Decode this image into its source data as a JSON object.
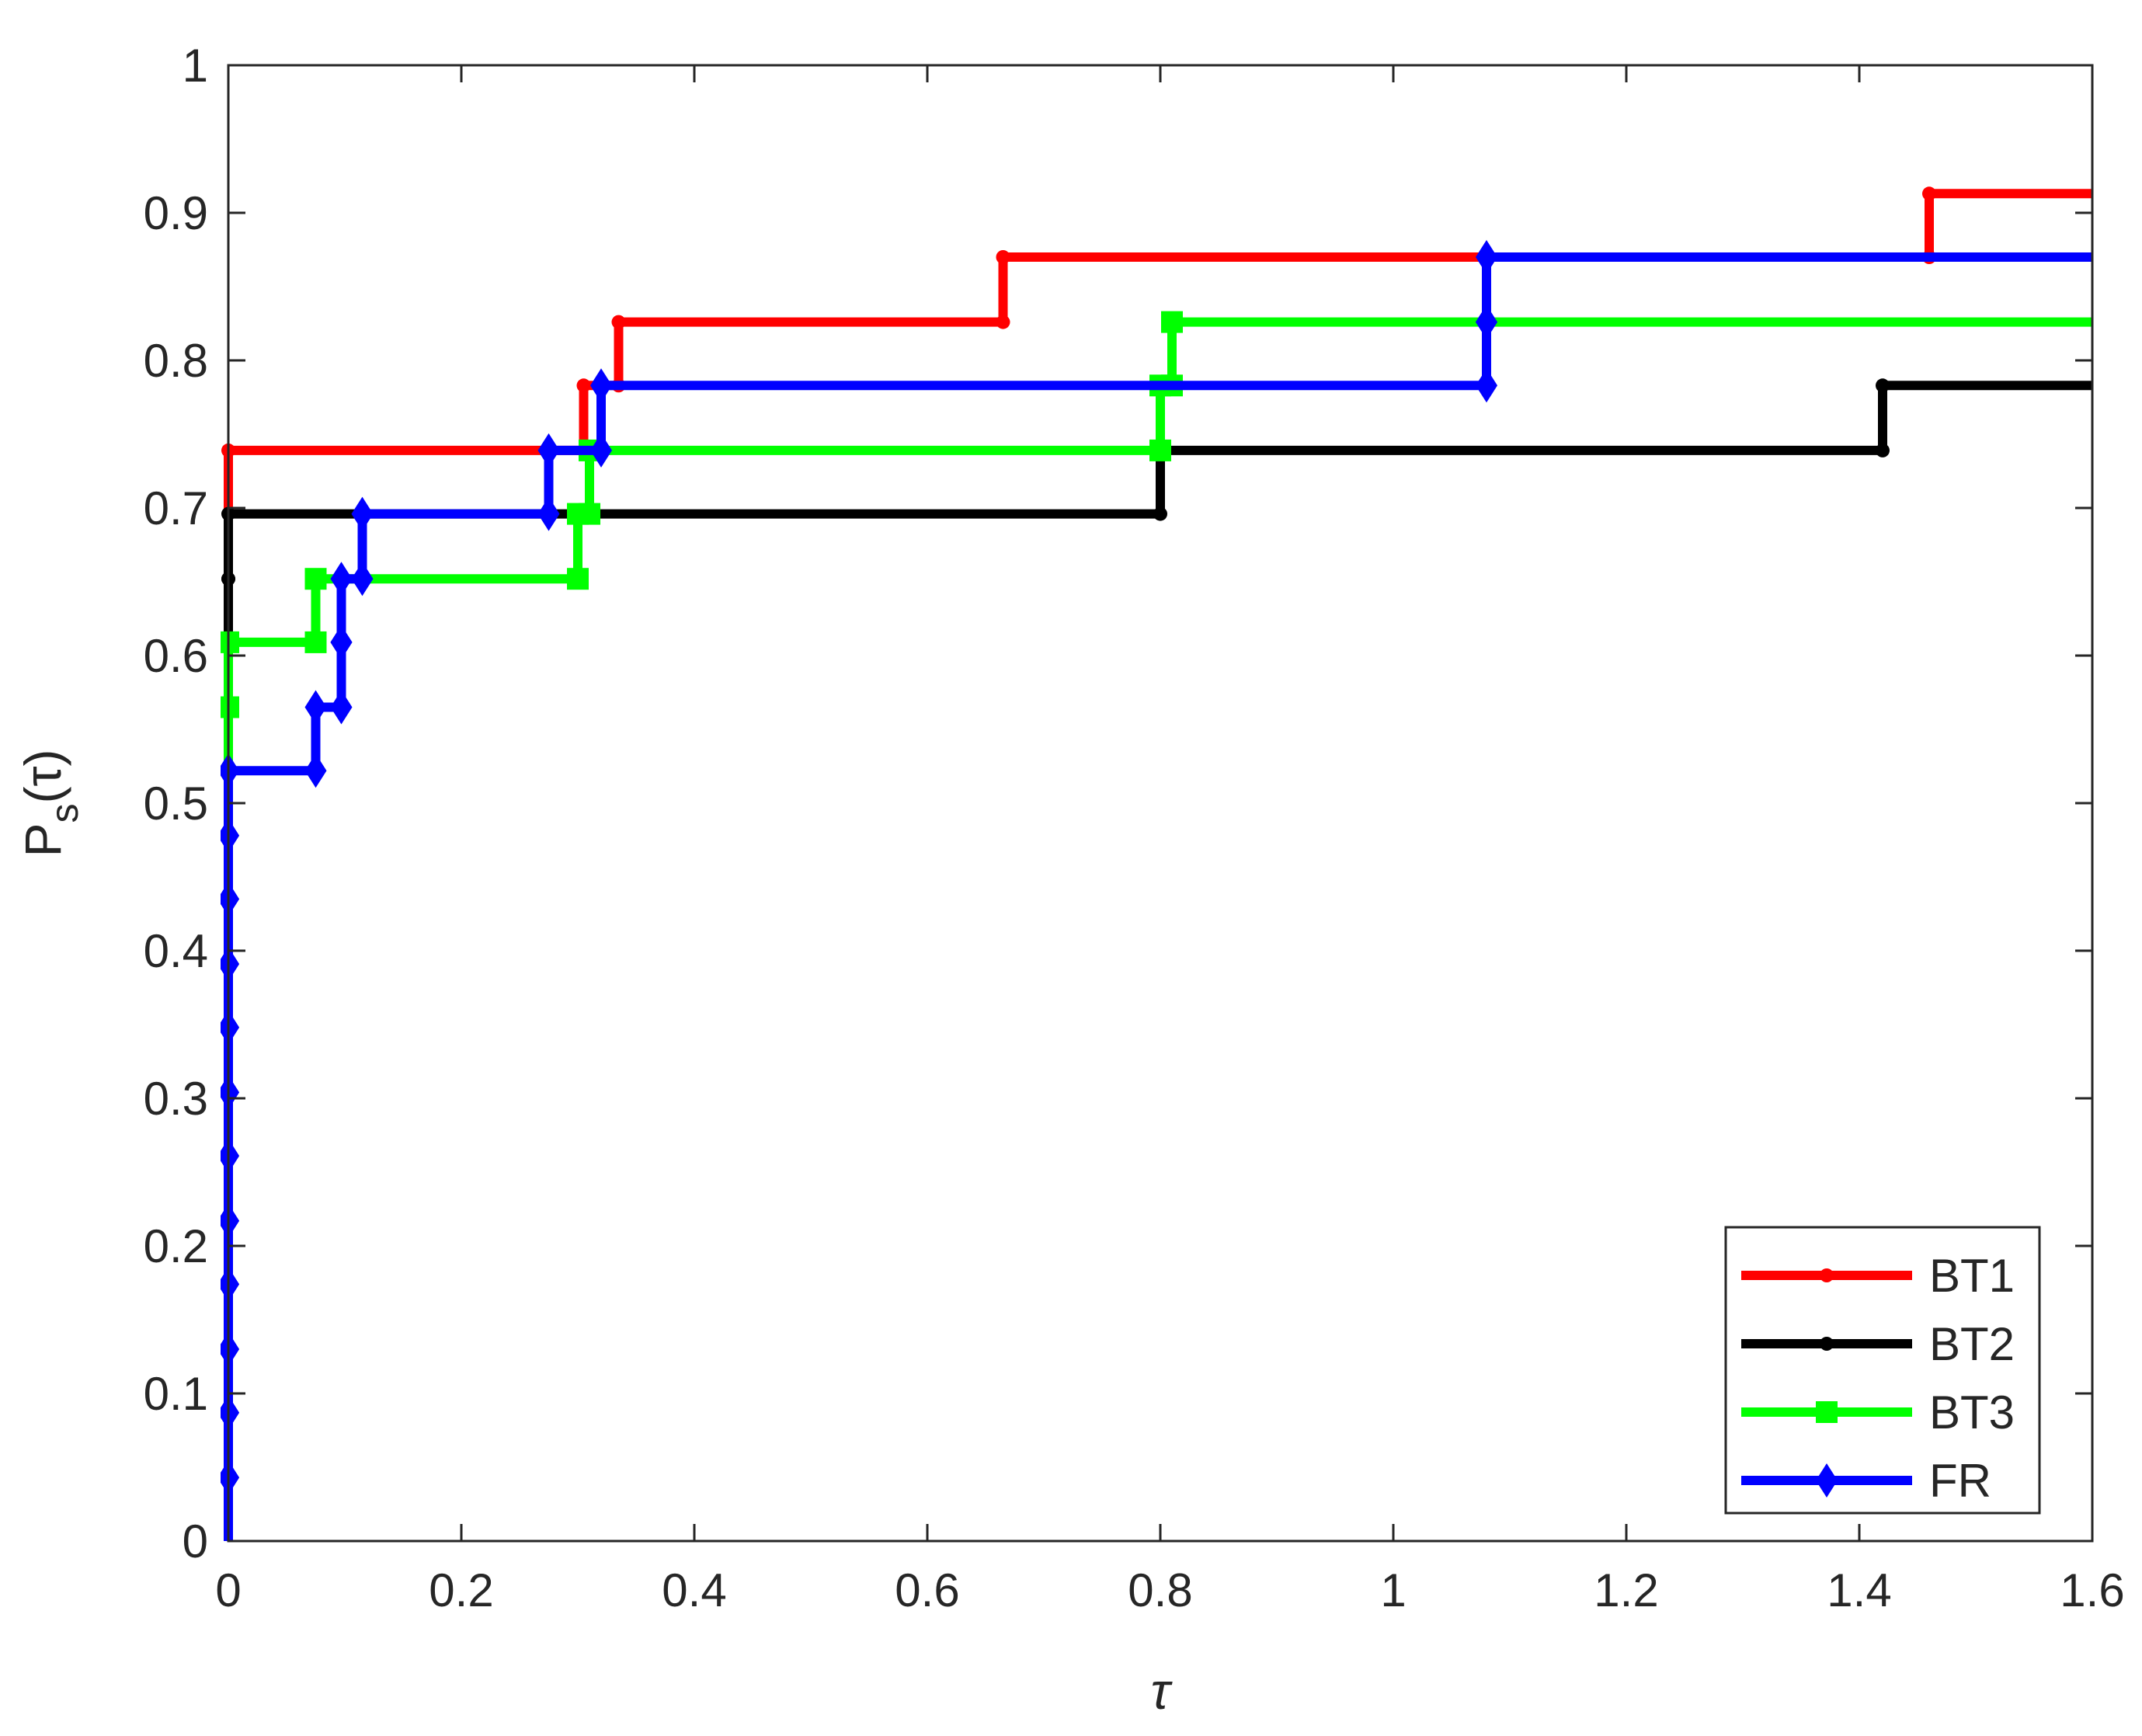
{
  "chart_data": {
    "type": "line",
    "title": "",
    "xlabel": "τ",
    "ylabel_main": "P",
    "ylabel_sub": "s",
    "ylabel_arg": "(τ)",
    "xlim": [
      0,
      1.6
    ],
    "ylim": [
      0,
      1
    ],
    "x_ticks": [
      0,
      0.2,
      0.4,
      0.6,
      0.8,
      1,
      1.2,
      1.4,
      1.6
    ],
    "x_tick_labels": [
      "0",
      "0.2",
      "0.4",
      "0.6",
      "0.8",
      "1",
      "1.2",
      "1.4",
      "1.6"
    ],
    "y_ticks": [
      0,
      0.1,
      0.2,
      0.3,
      0.4,
      0.5,
      0.6,
      0.7,
      0.8,
      0.9,
      1
    ],
    "y_tick_labels": [
      "0",
      "0.1",
      "0.2",
      "0.3",
      "0.4",
      "0.5",
      "0.6",
      "0.7",
      "0.8",
      "0.9",
      "1"
    ],
    "grid": false,
    "legend_position": "bottom-right",
    "step_plot": true,
    "series": [
      {
        "name": "BT1",
        "color": "#ff0000",
        "marker": "dot",
        "x": [
          0,
          0.305,
          0.335,
          0.665,
          1.46,
          1.6
        ],
        "y": [
          0.739,
          0.783,
          0.826,
          0.87,
          0.913,
          0.913
        ]
      },
      {
        "name": "BT2",
        "color": "#000000",
        "marker": "dot",
        "x": [
          0,
          0,
          0.8,
          1.42,
          1.6
        ],
        "y": [
          0.652,
          0.696,
          0.739,
          0.783,
          0.783
        ]
      },
      {
        "name": "BT3",
        "color": "#00ff00",
        "marker": "square",
        "x": [
          0,
          0,
          0.075,
          0.3,
          0.31,
          0.8,
          0.81,
          1.6
        ],
        "y": [
          0.565,
          0.609,
          0.652,
          0.696,
          0.739,
          0.783,
          0.826,
          0.826
        ]
      },
      {
        "name": "FR",
        "color": "#0000ff",
        "marker": "diamond",
        "x": [
          0,
          0,
          0,
          0,
          0,
          0,
          0,
          0,
          0,
          0,
          0,
          0,
          0.075,
          0.097,
          0.097,
          0.115,
          0.275,
          0.32,
          1.08,
          1.08,
          1.6
        ],
        "y": [
          0.043,
          0.087,
          0.13,
          0.174,
          0.217,
          0.261,
          0.304,
          0.348,
          0.391,
          0.435,
          0.478,
          0.522,
          0.565,
          0.609,
          0.652,
          0.696,
          0.739,
          0.783,
          0.826,
          0.87,
          0.87
        ]
      }
    ]
  }
}
